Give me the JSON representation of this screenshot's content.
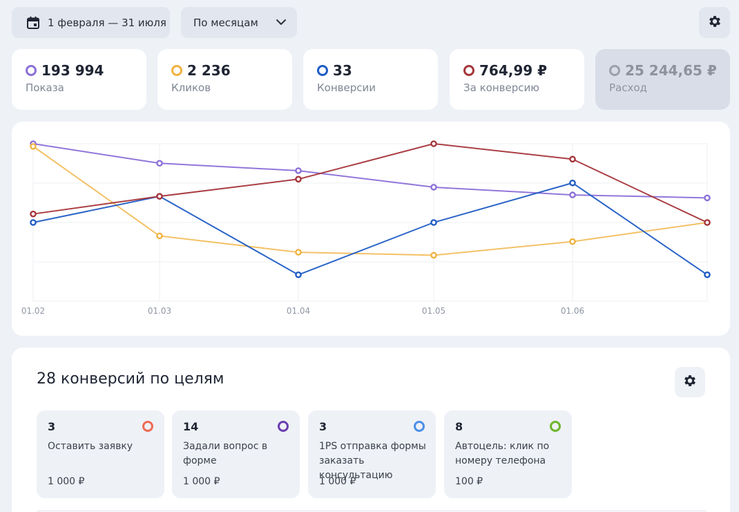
{
  "toolbar": {
    "date_range": "1 февраля — 31 июля",
    "grouping": "По месяцам",
    "icons": {
      "calendar": "calendar-icon",
      "chevron": "chevron-down-icon",
      "settings": "gear-icon"
    }
  },
  "metrics": [
    {
      "value": "193 994",
      "label": "Показа",
      "color": "#8c6fd8",
      "active": true
    },
    {
      "value": "2 236",
      "label": "Кликов",
      "color": "#f0b240",
      "active": true
    },
    {
      "value": "33",
      "label": "Конверсии",
      "color": "#1f5cc4",
      "active": true
    },
    {
      "value": "764,99 ₽",
      "label": "За конверсию",
      "color": "#a5353a",
      "active": true
    },
    {
      "value": "25 244,65 ₽",
      "label": "Расход",
      "color": "#9aa0ab",
      "active": false
    }
  ],
  "chart_data": {
    "type": "line",
    "categories": [
      "01.02",
      "01.03",
      "01.04",
      "01.05",
      "01.06",
      ""
    ],
    "grid": true,
    "series": [
      {
        "color": "#8c6fd8",
        "values": [
          1.0,
          0.876,
          0.829,
          0.724,
          0.675,
          0.656
        ]
      },
      {
        "color": "#f0b240",
        "values": [
          0.983,
          0.415,
          0.311,
          0.292,
          0.379,
          0.5
        ]
      },
      {
        "color": "#1f5cc4",
        "values": [
          0.5,
          0.666,
          0.168,
          0.5,
          0.751,
          0.168
        ]
      },
      {
        "color": "#a5353a",
        "values": [
          0.554,
          0.666,
          0.775,
          1.0,
          0.902,
          0.5
        ]
      }
    ]
  },
  "goals": {
    "title": "28 конверсий по целям",
    "items": [
      {
        "count": "3",
        "name": "Оставить заявку",
        "price": "1 000 ₽",
        "color": "#ef6a55"
      },
      {
        "count": "14",
        "name": "Задали вопрос в форме",
        "price": "1 000 ₽",
        "color": "#6a3eb0"
      },
      {
        "count": "3",
        "name": "1PS отправка формы заказать консультацию",
        "price": "1 000 ₽",
        "color": "#4a8fe8"
      },
      {
        "count": "8",
        "name": "Автоцель: клик по номеру телефона",
        "price": "100 ₽",
        "color": "#6db52c"
      }
    ]
  }
}
